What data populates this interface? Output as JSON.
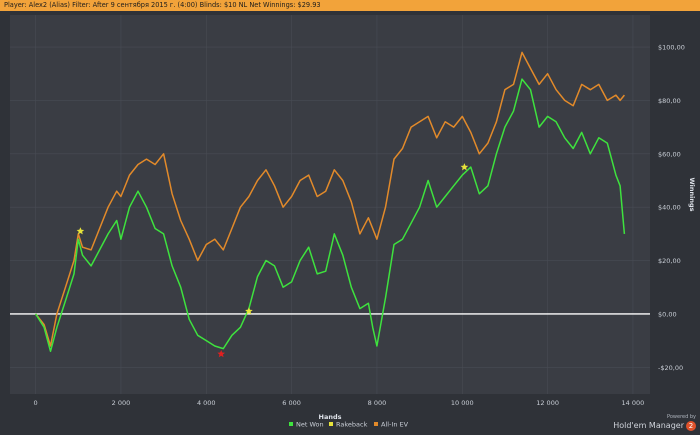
{
  "header": {
    "player_label": "Player:",
    "player_value": "Alex2 (Alias)",
    "filter_label": "Filter:",
    "filter_value": "After 9 сентября 2015 г. (4:00)",
    "blinds_label": "Blinds:",
    "blinds_value": "$10 NL",
    "net_label": "Net Winnings:",
    "net_value": "$29.93"
  },
  "branding": {
    "powered_by": "Powered by",
    "name": "Hold'em Manager",
    "version": "2"
  },
  "colors": {
    "background": "#2f3238",
    "plot_bg": "#3a3d44",
    "grid": "#484c54",
    "net_won": "#3ee23e",
    "rakeback": "#e6e23a",
    "all_in_ev": "#e28a2a",
    "zero_line": "#ffffff",
    "title_bar": "#f2a33a"
  },
  "chart_data": {
    "type": "line",
    "xlabel": "Hands",
    "ylabel": "Winnings",
    "xlim": [
      -600,
      14400
    ],
    "ylim": [
      -30,
      112
    ],
    "x_ticks": [
      0,
      2000,
      4000,
      6000,
      8000,
      10000,
      12000,
      14000
    ],
    "x_tick_labels": [
      "0",
      "2 000",
      "4 000",
      "6 000",
      "8 000",
      "10 000",
      "12 000",
      "14 000"
    ],
    "y_ticks": [
      -20,
      0,
      20,
      40,
      60,
      80,
      100
    ],
    "y_tick_labels": [
      "-$20,00",
      "$0,00",
      "$20,00",
      "$40,00",
      "$60,00",
      "$80,00",
      "$100,00"
    ],
    "grid": true,
    "legend": "bottom-center",
    "series": [
      {
        "name": "Net Won",
        "x": [
          0,
          200,
          350,
          500,
          700,
          900,
          1000,
          1100,
          1300,
          1500,
          1700,
          1900,
          2000,
          2200,
          2400,
          2600,
          2800,
          3000,
          3200,
          3400,
          3600,
          3800,
          4000,
          4200,
          4400,
          4600,
          4800,
          5000,
          5200,
          5400,
          5600,
          5800,
          6000,
          6200,
          6400,
          6600,
          6800,
          7000,
          7200,
          7400,
          7600,
          7800,
          7900,
          8000,
          8200,
          8400,
          8600,
          8800,
          9000,
          9200,
          9400,
          9600,
          9800,
          10000,
          10200,
          10400,
          10600,
          10800,
          11000,
          11200,
          11400,
          11600,
          11800,
          12000,
          12200,
          12400,
          12600,
          12800,
          13000,
          13200,
          13400,
          13600,
          13700,
          13800
        ],
        "values": [
          0,
          -5,
          -14,
          -5,
          5,
          15,
          28,
          22,
          18,
          24,
          30,
          35,
          28,
          40,
          46,
          40,
          32,
          30,
          18,
          10,
          -2,
          -8,
          -10,
          -12,
          -13,
          -8,
          -5,
          2,
          14,
          20,
          18,
          10,
          12,
          20,
          25,
          15,
          16,
          30,
          22,
          10,
          2,
          4,
          -5,
          -12,
          6,
          26,
          28,
          34,
          40,
          50,
          40,
          44,
          48,
          52,
          55,
          45,
          48,
          60,
          70,
          76,
          88,
          84,
          70,
          74,
          72,
          66,
          62,
          68,
          60,
          66,
          64,
          52,
          48,
          30
        ]
      },
      {
        "name": "Rakeback",
        "markers": [
          {
            "x": 1050,
            "y": 31
          },
          {
            "x": 5000,
            "y": 1
          },
          {
            "x": 10050,
            "y": 55
          }
        ]
      },
      {
        "name": "All-In EV",
        "x": [
          0,
          200,
          350,
          500,
          700,
          900,
          1000,
          1100,
          1300,
          1500,
          1700,
          1900,
          2000,
          2200,
          2400,
          2600,
          2800,
          3000,
          3200,
          3400,
          3600,
          3800,
          4000,
          4200,
          4400,
          4600,
          4800,
          5000,
          5200,
          5400,
          5600,
          5800,
          6000,
          6200,
          6400,
          6600,
          6800,
          7000,
          7200,
          7400,
          7600,
          7800,
          7900,
          8000,
          8200,
          8400,
          8600,
          8800,
          9000,
          9200,
          9400,
          9600,
          9800,
          10000,
          10200,
          10400,
          10600,
          10800,
          11000,
          11200,
          11400,
          11600,
          11800,
          12000,
          12200,
          12400,
          12600,
          12800,
          13000,
          13200,
          13400,
          13600,
          13700,
          13800
        ],
        "values": [
          0,
          -4,
          -12,
          0,
          10,
          20,
          30,
          25,
          24,
          32,
          40,
          46,
          44,
          52,
          56,
          58,
          56,
          60,
          45,
          35,
          28,
          20,
          26,
          28,
          24,
          32,
          40,
          44,
          50,
          54,
          48,
          40,
          44,
          50,
          52,
          44,
          46,
          54,
          50,
          42,
          30,
          36,
          32,
          28,
          40,
          58,
          62,
          70,
          72,
          74,
          66,
          72,
          70,
          74,
          68,
          60,
          64,
          72,
          84,
          86,
          98,
          92,
          86,
          90,
          84,
          80,
          78,
          86,
          84,
          86,
          80,
          82,
          80,
          82
        ]
      }
    ],
    "annotations": [
      {
        "type": "marker",
        "color": "#e02020",
        "x": 4350,
        "y": -15
      }
    ]
  }
}
